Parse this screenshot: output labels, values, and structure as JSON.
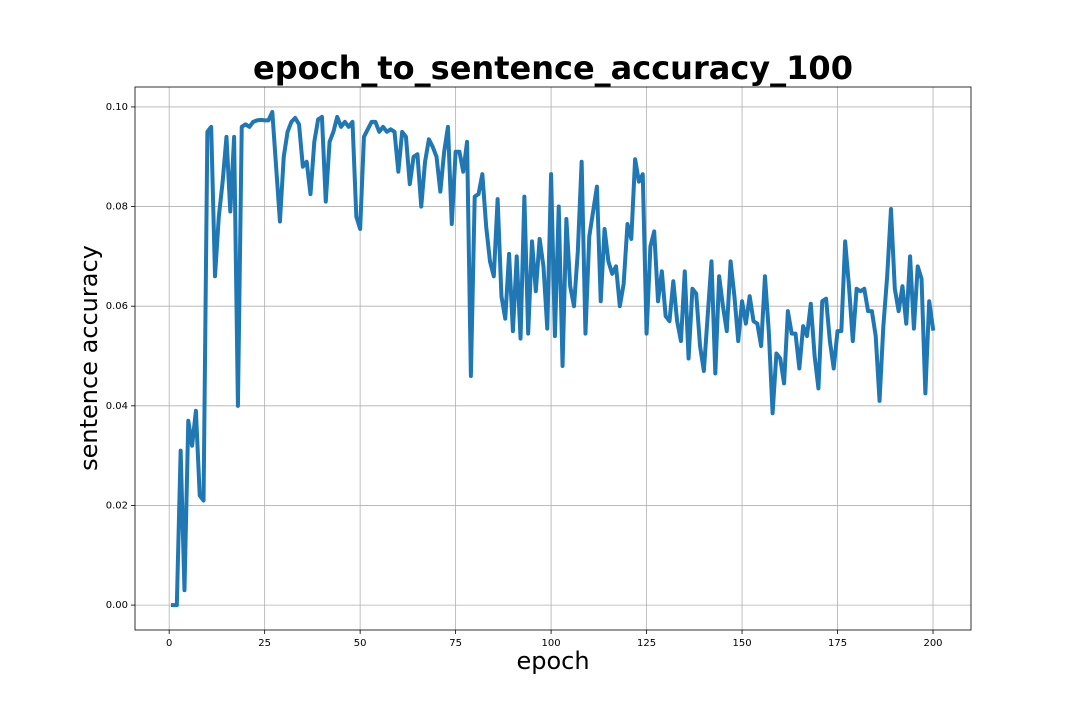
{
  "chart_data": {
    "type": "line",
    "title": "epoch_to_sentence_accuracy_100",
    "x_label": "epoch",
    "y_label": "sentence accuracy",
    "color": "#1f77b4",
    "grid": true,
    "xlim": [
      -8.95,
      209.95
    ],
    "ylim": [
      -0.005,
      0.104
    ],
    "xticks": [
      0,
      25,
      50,
      75,
      100,
      125,
      150,
      175,
      200
    ],
    "yticks": [
      {
        "value": 0,
        "label": "0.00"
      },
      {
        "value": 0.02,
        "label": "0.02"
      },
      {
        "value": 0.04,
        "label": "0.04"
      },
      {
        "value": 0.06,
        "label": "0.06"
      },
      {
        "value": 0.08,
        "label": "0.08"
      },
      {
        "value": 0.1,
        "label": "0.10"
      }
    ],
    "x": [
      1,
      2,
      3,
      4,
      5,
      6,
      7,
      8,
      9,
      10,
      11,
      12,
      13,
      14,
      15,
      16,
      17,
      18,
      19,
      20,
      21,
      22,
      23,
      24,
      25,
      26,
      27,
      28,
      29,
      30,
      31,
      32,
      33,
      34,
      35,
      36,
      37,
      38,
      39,
      40,
      41,
      42,
      43,
      44,
      45,
      46,
      47,
      48,
      49,
      50,
      51,
      52,
      53,
      54,
      55,
      56,
      57,
      58,
      59,
      60,
      61,
      62,
      63,
      64,
      65,
      66,
      67,
      68,
      69,
      70,
      71,
      72,
      73,
      74,
      75,
      76,
      77,
      78,
      79,
      80,
      81,
      82,
      83,
      84,
      85,
      86,
      87,
      88,
      89,
      90,
      91,
      92,
      93,
      94,
      95,
      96,
      97,
      98,
      99,
      100,
      101,
      102,
      103,
      104,
      105,
      106,
      107,
      108,
      109,
      110,
      111,
      112,
      113,
      114,
      115,
      116,
      117,
      118,
      119,
      120,
      121,
      122,
      123,
      124,
      125,
      126,
      127,
      128,
      129,
      130,
      131,
      132,
      133,
      134,
      135,
      136,
      137,
      138,
      139,
      140,
      141,
      142,
      143,
      144,
      145,
      146,
      147,
      148,
      149,
      150,
      151,
      152,
      153,
      154,
      155,
      156,
      157,
      158,
      159,
      160,
      161,
      162,
      163,
      164,
      165,
      166,
      167,
      168,
      169,
      170,
      171,
      172,
      173,
      174,
      175,
      176,
      177,
      178,
      179,
      180,
      181,
      182,
      183,
      184,
      185,
      186,
      187,
      188,
      189,
      190,
      191,
      192,
      193,
      194,
      195,
      196,
      197,
      198,
      199,
      200
    ],
    "values": [
      0,
      0,
      0.031,
      0.003,
      0.037,
      0.032,
      0.039,
      0.022,
      0.021,
      0.095,
      0.096,
      0.066,
      0.078,
      0.085,
      0.094,
      0.079,
      0.094,
      0.04,
      0.096,
      0.0965,
      0.096,
      0.097,
      0.0973,
      0.0974,
      0.0973,
      0.0973,
      0.099,
      0.088,
      0.077,
      0.09,
      0.095,
      0.097,
      0.0978,
      0.0965,
      0.088,
      0.089,
      0.0825,
      0.093,
      0.0975,
      0.098,
      0.081,
      0.093,
      0.095,
      0.098,
      0.096,
      0.097,
      0.096,
      0.097,
      0.078,
      0.0755,
      0.094,
      0.0955,
      0.097,
      0.097,
      0.095,
      0.096,
      0.095,
      0.0955,
      0.095,
      0.087,
      0.095,
      0.094,
      0.0845,
      0.09,
      0.0905,
      0.08,
      0.089,
      0.0935,
      0.092,
      0.09,
      0.083,
      0.091,
      0.096,
      0.0765,
      0.091,
      0.091,
      0.087,
      0.093,
      0.046,
      0.082,
      0.0825,
      0.0865,
      0.076,
      0.069,
      0.066,
      0.0815,
      0.062,
      0.0575,
      0.0705,
      0.055,
      0.07,
      0.0535,
      0.082,
      0.0545,
      0.073,
      0.063,
      0.0735,
      0.068,
      0.0555,
      0.0865,
      0.054,
      0.08,
      0.048,
      0.0775,
      0.064,
      0.06,
      0.071,
      0.089,
      0.0545,
      0.074,
      0.079,
      0.084,
      0.061,
      0.0755,
      0.069,
      0.0665,
      0.068,
      0.06,
      0.0645,
      0.0765,
      0.0735,
      0.0895,
      0.085,
      0.0865,
      0.0545,
      0.072,
      0.075,
      0.061,
      0.067,
      0.058,
      0.057,
      0.065,
      0.057,
      0.053,
      0.067,
      0.0495,
      0.0635,
      0.0625,
      0.052,
      0.047,
      0.058,
      0.069,
      0.0465,
      0.066,
      0.06,
      0.055,
      0.069,
      0.062,
      0.053,
      0.061,
      0.0565,
      0.062,
      0.057,
      0.0565,
      0.052,
      0.066,
      0.055,
      0.0385,
      0.0505,
      0.0495,
      0.0445,
      0.059,
      0.0545,
      0.0545,
      0.0475,
      0.056,
      0.054,
      0.0605,
      0.05,
      0.0435,
      0.061,
      0.0615,
      0.053,
      0.0475,
      0.055,
      0.055,
      0.073,
      0.064,
      0.053,
      0.0635,
      0.063,
      0.0635,
      0.059,
      0.059,
      0.054,
      0.041,
      0.056,
      0.066,
      0.0795,
      0.0635,
      0.059,
      0.064,
      0.0565,
      0.07,
      0.0555,
      0.068,
      0.0655,
      0.0425,
      0.061,
      0.0555
    ]
  }
}
